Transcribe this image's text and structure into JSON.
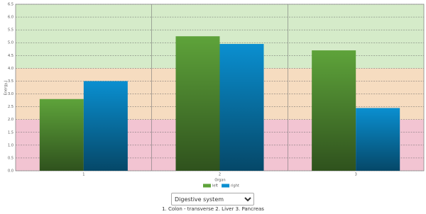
{
  "chart_data": {
    "type": "bar",
    "y_label": "Energy,J",
    "categories": [
      "1",
      "2",
      "3"
    ],
    "legend_title": "Organ",
    "series": [
      {
        "name": "left",
        "color": "#5ea33a",
        "values": [
          2.8,
          5.25,
          4.7
        ]
      },
      {
        "name": "right",
        "color": "#0a8fd0",
        "values": [
          3.5,
          4.95,
          2.45
        ]
      }
    ],
    "bands": [
      {
        "from": 0,
        "to": 2,
        "color": "#f2c4d2"
      },
      {
        "from": 2,
        "to": 4,
        "color": "#f6dcc0"
      },
      {
        "from": 4,
        "to": 6.5,
        "color": "#d5ebc9"
      }
    ],
    "ylim": [
      0,
      6.5
    ],
    "yticks": [
      {
        "value": 0,
        "label": "0.0"
      },
      {
        "value": 0.5,
        "label": "0.5"
      },
      {
        "value": 1,
        "label": "1.0"
      },
      {
        "value": 1.5,
        "label": "1.5"
      },
      {
        "value": 2,
        "label": "2.0"
      },
      {
        "value": 2.5,
        "label": "2.5"
      },
      {
        "value": 3,
        "label": "3.0"
      },
      {
        "value": 3.5,
        "label": "3.5"
      },
      {
        "value": 4,
        "label": "4.0"
      },
      {
        "value": 4.5,
        "label": "4.5"
      },
      {
        "value": 5,
        "label": "5.0"
      },
      {
        "value": 5.5,
        "label": "5.5"
      },
      {
        "value": 6,
        "label": "6.0"
      },
      {
        "value": 6.5,
        "label": "6.5"
      }
    ],
    "grid": true
  },
  "controls": {
    "dropdown": "Digestive system",
    "caption": "1. Colon - transverse  2. Liver  3. Pancreas"
  }
}
